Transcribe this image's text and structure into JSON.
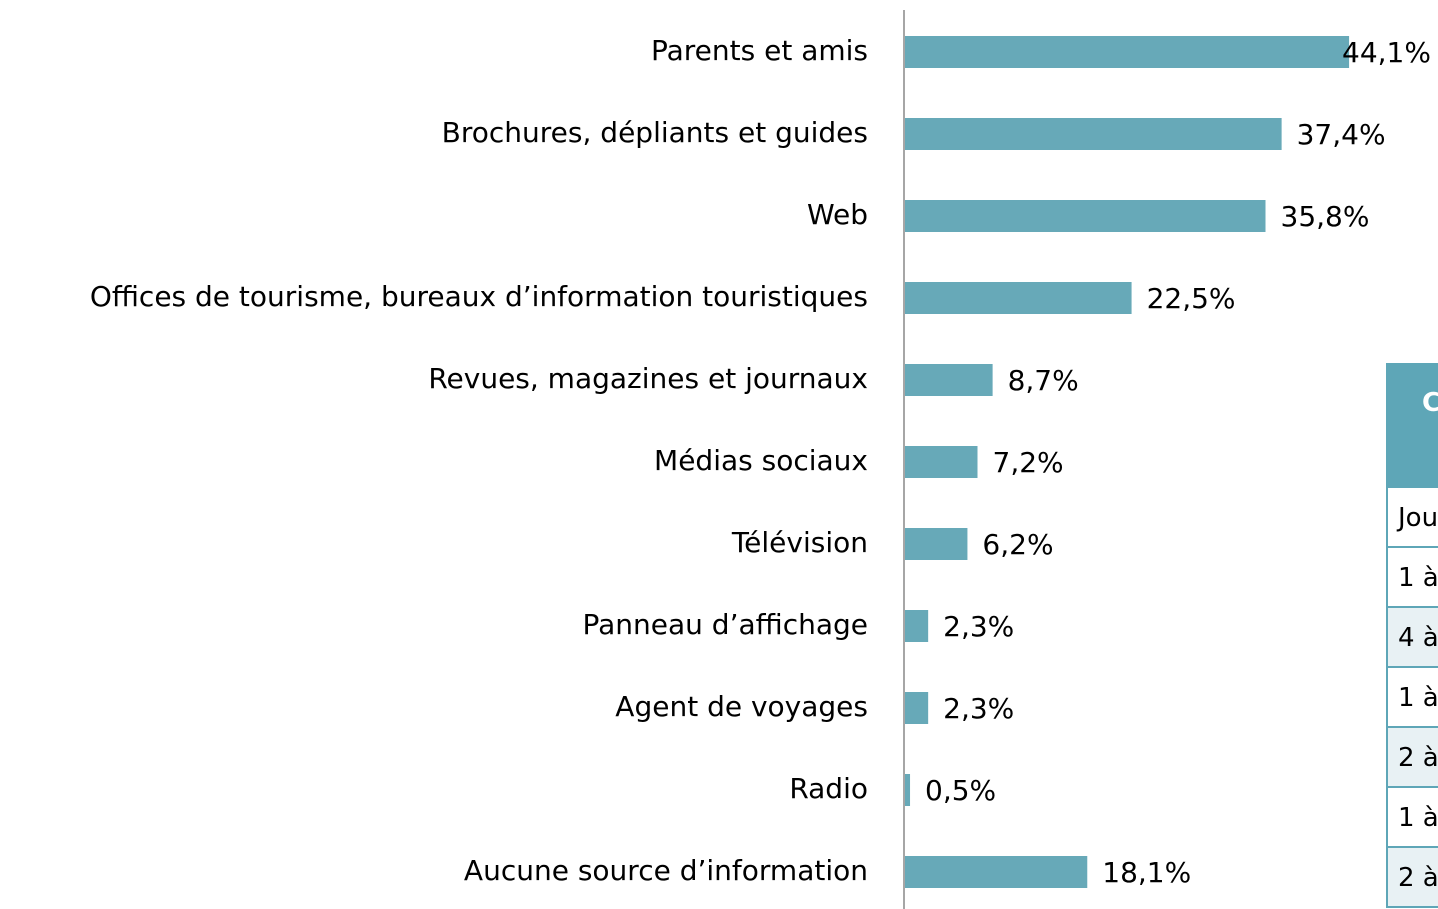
{
  "chart_data": {
    "type": "bar",
    "orientation": "horizontal",
    "categories": [
      "Parents et amis",
      "Brochures, dépliants et guides",
      "Web",
      "Offices de tourisme, bureaux d’information touristiques",
      "Revues, magazines et journaux",
      "Médias sociaux",
      "Télévision",
      "Panneau d’affichage",
      "Agent de voyages",
      "Radio",
      "Aucune source d’information"
    ],
    "values": [
      44.1,
      37.4,
      35.8,
      22.5,
      8.7,
      7.2,
      6.2,
      2.3,
      2.3,
      0.5,
      18.1
    ],
    "value_labels": [
      "44,1%",
      "37,4%",
      "35,8%",
      "22,5%",
      "8,7%",
      "7,2%",
      "6,2%",
      "2,3%",
      "2,3%",
      "0,5%",
      "18,1%"
    ],
    "color": "#67a9b8"
  },
  "table": {
    "header": "C",
    "rows": [
      "Jou",
      "1 à",
      "4 à",
      "1 à",
      "2 à",
      "1 à",
      "2 à"
    ]
  }
}
